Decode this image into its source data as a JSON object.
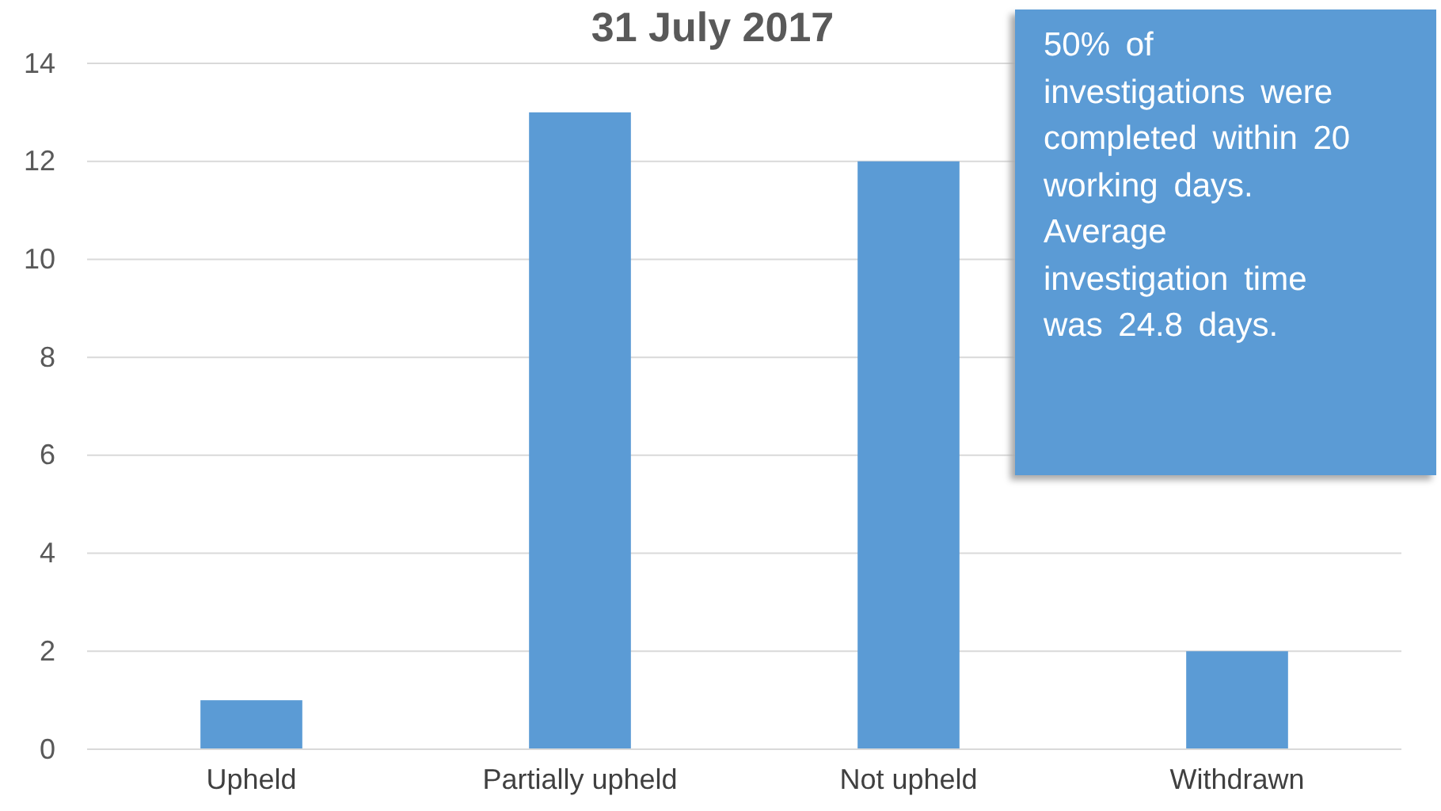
{
  "chart_data": {
    "type": "bar",
    "title": "31 July 2017",
    "categories": [
      "Upheld",
      "Partially upheld",
      "Not upheld",
      "Withdrawn"
    ],
    "values": [
      1,
      13,
      12,
      2
    ],
    "color": "#5b9bd5",
    "ylim": [
      0,
      14
    ],
    "yticks": [
      0,
      2,
      4,
      6,
      8,
      10,
      12,
      14
    ],
    "grid": "y",
    "annotations": [
      "50% of investigations were completed within 20 working days. Average investigation time was 24.8 days."
    ]
  }
}
